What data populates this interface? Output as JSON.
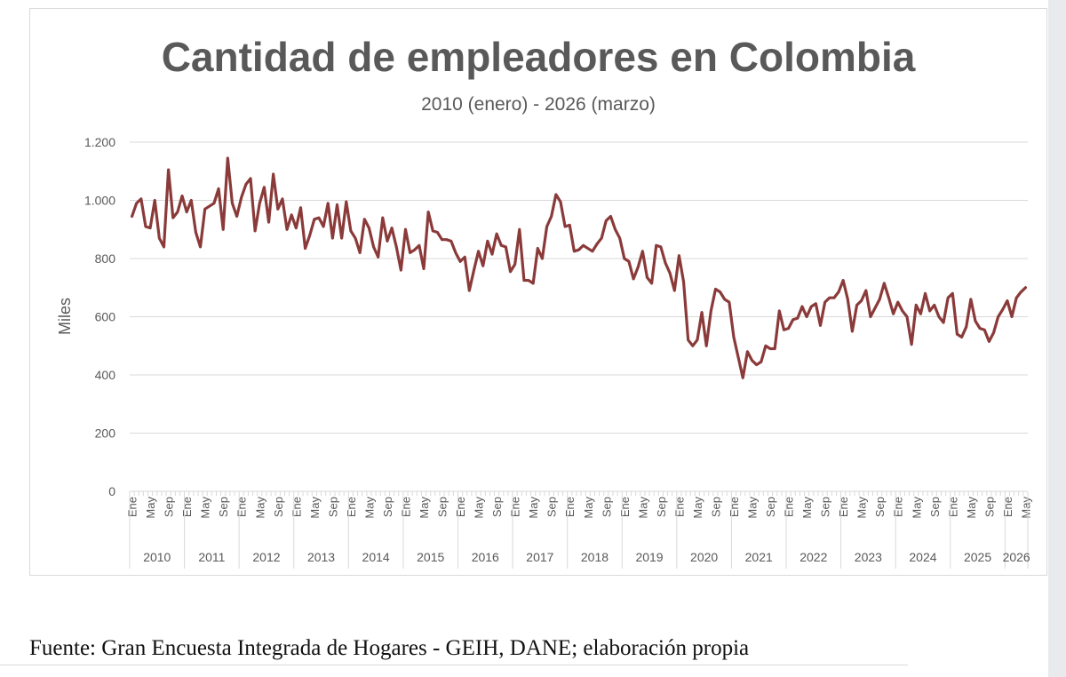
{
  "caption": "Fuente: Gran Encuesta Integrada de Hogares - GEIH, DANE; elaboración propia",
  "colors": {
    "line": "#8b3a3a",
    "grid": "#d9d9d9",
    "title": "#595959",
    "axis_text": "#595959"
  },
  "chart_data": {
    "type": "line",
    "title": "Cantidad de empleadores en Colombia",
    "subtitle": "2010 (enero) - 2026 (marzo)",
    "xlabel": "",
    "ylabel": "Miles",
    "ylim": [
      0,
      1200
    ],
    "yticks": [
      0,
      200,
      400,
      600,
      800,
      1000,
      1200
    ],
    "ytick_labels": [
      "0",
      "200",
      "400",
      "600",
      "800",
      "1.000",
      "1.200"
    ],
    "grid": "horizontal",
    "legend": "none",
    "month_tick_labels": [
      "Ene",
      "May",
      "Sep"
    ],
    "years": [
      "2010",
      "2011",
      "2012",
      "2013",
      "2014",
      "2015",
      "2016",
      "2017",
      "2018",
      "2019",
      "2020",
      "2021",
      "2022",
      "2023",
      "2024",
      "2025",
      "2026"
    ],
    "series": [
      {
        "values": [
          945,
          990,
          1005,
          910,
          905,
          1000,
          870,
          840,
          1105,
          940,
          960,
          1015,
          960,
          1000,
          890,
          840,
          970,
          980,
          990,
          1040,
          900,
          1145,
          990,
          945,
          1010,
          1055,
          1075,
          895,
          990,
          1045,
          925,
          1090,
          970,
          1005,
          900,
          950,
          905,
          975,
          835,
          880,
          935,
          940,
          910,
          990,
          870,
          985,
          870,
          995,
          895,
          870,
          820,
          935,
          905,
          840,
          805,
          940,
          860,
          905,
          840,
          760,
          900,
          820,
          830,
          845,
          765,
          960,
          895,
          890,
          865,
          865,
          860,
          820,
          790,
          805,
          690,
          760,
          825,
          775,
          860,
          815,
          885,
          845,
          840,
          755,
          780,
          900,
          725,
          725,
          715,
          835,
          800,
          910,
          945,
          1020,
          995,
          910,
          915,
          825,
          830,
          845,
          835,
          825,
          850,
          870,
          930,
          945,
          900,
          870,
          800,
          790,
          730,
          770,
          825,
          735,
          715,
          845,
          840,
          785,
          750,
          690,
          810,
          720,
          520,
          500,
          520,
          615,
          500,
          620,
          695,
          685,
          660,
          650,
          530,
          460,
          390,
          480,
          450,
          435,
          445,
          500,
          490,
          490,
          620,
          555,
          560,
          590,
          595,
          635,
          600,
          635,
          645,
          570,
          650,
          665,
          665,
          685,
          725,
          660,
          550,
          640,
          655,
          690,
          600,
          630,
          660,
          715,
          665,
          610,
          650,
          620,
          600,
          505,
          640,
          610,
          680,
          620,
          640,
          600,
          580,
          665,
          680,
          540,
          530,
          565,
          660,
          585,
          560,
          555,
          515,
          545,
          600,
          625,
          655,
          600,
          665,
          685,
          700
        ]
      }
    ]
  }
}
